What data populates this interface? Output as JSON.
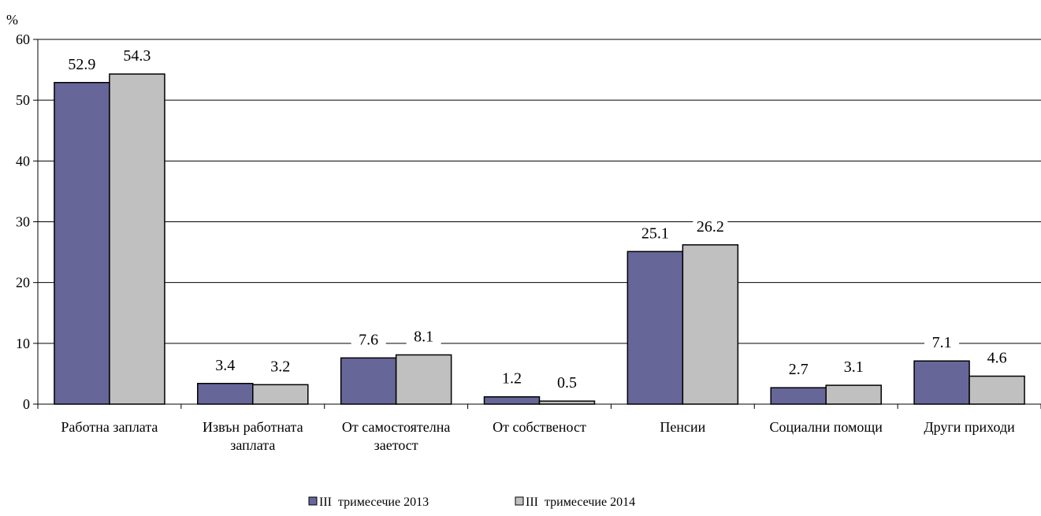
{
  "chart_data": {
    "type": "bar",
    "title": "",
    "ylabel": "%",
    "xlabel": "",
    "ylim": [
      0,
      60
    ],
    "yticks": [
      0,
      10,
      20,
      30,
      40,
      50,
      60
    ],
    "grid": true,
    "legend_position": "bottom",
    "categories": [
      [
        "Работна заплата"
      ],
      [
        "Извън работната",
        "заплата"
      ],
      [
        "От самостоятелна",
        "заетост"
      ],
      [
        "От собственост"
      ],
      [
        "Пенсии"
      ],
      [
        "Социални помощи"
      ],
      [
        "Други приходи"
      ]
    ],
    "series": [
      {
        "name": "III  тримесечие 2013",
        "color": "#666699",
        "values": [
          52.9,
          3.4,
          7.6,
          1.2,
          25.1,
          2.7,
          7.1
        ]
      },
      {
        "name": "III  тримесечие 2014",
        "color": "#C0C0C0",
        "values": [
          54.3,
          3.2,
          8.1,
          0.5,
          26.2,
          3.1,
          4.6
        ]
      }
    ],
    "data_labels": [
      [
        "52.9",
        "3.4",
        "7.6",
        "1.2",
        "25.1",
        "2.7",
        "7.1"
      ],
      [
        "54.3",
        "3.2",
        "8.1",
        "0.5",
        "26.2",
        "3.1",
        "4.6"
      ]
    ]
  }
}
